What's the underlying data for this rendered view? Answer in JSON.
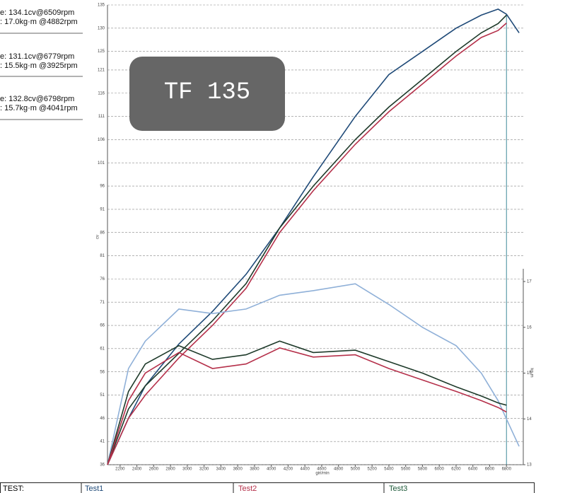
{
  "chart_data": {
    "type": "line",
    "x": [
      2050,
      2300,
      2500,
      2900,
      3300,
      3700,
      4100,
      4500,
      5000,
      5400,
      5800,
      6200,
      6500,
      6700,
      6800,
      6950
    ],
    "xlim": [
      2050,
      7000
    ],
    "xticks": [
      2200,
      2400,
      2600,
      2800,
      3000,
      3200,
      3400,
      3600,
      3800,
      4000,
      4200,
      4400,
      4600,
      4800,
      5000,
      5200,
      5400,
      5600,
      5800,
      6000,
      6200,
      6400,
      6600,
      6800
    ],
    "ylim": [
      36,
      135
    ],
    "yticks": [
      36,
      41,
      46,
      51,
      56,
      61,
      66,
      71,
      76,
      81,
      86,
      91,
      96,
      101,
      106,
      111,
      116,
      121,
      125,
      130,
      135
    ],
    "y2lim": [
      13,
      17
    ],
    "y2ticks": [
      13,
      14,
      15,
      16,
      17
    ],
    "xlabel": "giri/min",
    "ylabel": "cv",
    "y2label": "kg·m",
    "vline": 6800,
    "grid": true,
    "series": [
      {
        "color": "#1f4a78",
        "values": [
          36,
          46,
          53,
          62,
          69,
          77,
          87,
          98,
          111,
          120,
          125,
          130,
          132.8,
          134.1,
          133,
          129
        ]
      },
      {
        "color": "#1e3a2a",
        "values": [
          36,
          48,
          53,
          60,
          67,
          75,
          87,
          96,
          106,
          113,
          119,
          125,
          129,
          131,
          132.8,
          null
        ]
      },
      {
        "color": "#b5304a",
        "values": [
          36,
          46,
          51,
          59,
          66,
          74,
          86,
          95,
          105,
          112,
          118,
          124,
          128,
          129.5,
          131.1,
          null
        ]
      },
      {
        "color": "#8fb0d8",
        "axis": "y2",
        "values": [
          13,
          15.1,
          15.7,
          16.4,
          16.3,
          16.4,
          16.7,
          16.8,
          16.95,
          16.5,
          16,
          15.6,
          15,
          14.4,
          14,
          13.4
        ]
      },
      {
        "color": "#1e3a2a",
        "axis": "y2",
        "values": [
          13,
          14.6,
          15.2,
          15.6,
          15.3,
          15.4,
          15.7,
          15.45,
          15.5,
          15.25,
          15,
          14.7,
          14.5,
          14.35,
          14.3,
          null
        ]
      },
      {
        "color": "#b5304a",
        "axis": "y2",
        "values": [
          13,
          14.4,
          15,
          15.45,
          15.1,
          15.2,
          15.55,
          15.35,
          15.4,
          15.1,
          14.85,
          14.6,
          14.4,
          14.25,
          14.15,
          null
        ]
      }
    ]
  },
  "notes": [
    "e: 134.1cv@6509rpm",
    ": 17.0kg·m @4882rpm",
    "e: 131.1cv@6779rpm",
    ": 15.5kg·m @3925rpm",
    "e: 132.8cv@6798rpm",
    ": 15.7kg·m @4041rpm"
  ],
  "badge": "TF 135",
  "table": {
    "header": "TEST:",
    "columns": [
      "Test1",
      "Test2",
      "Test3"
    ],
    "colors": [
      "#1f4a78",
      "#b5304a",
      "#1e5a3a"
    ]
  }
}
